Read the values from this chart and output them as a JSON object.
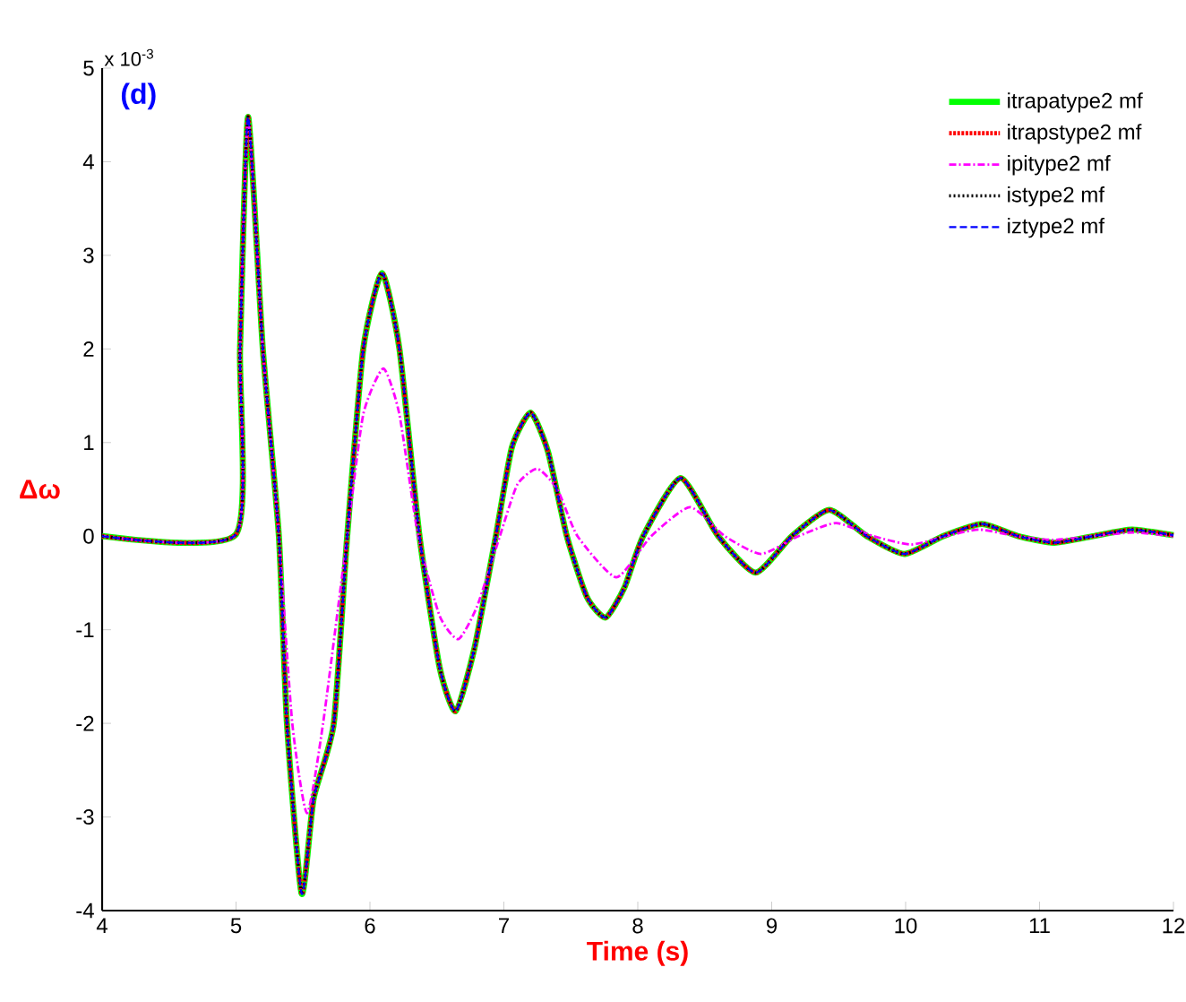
{
  "chart_data": {
    "type": "line",
    "xlabel": "Time (s)",
    "ylabel": "Δω",
    "annotations": [
      "x 10$^{-3}$",
      "(d)"
    ],
    "xlim": [
      4,
      12
    ],
    "ylim": [
      -4,
      5
    ],
    "xticks": [
      4,
      5,
      6,
      7,
      8,
      9,
      10,
      11,
      12
    ],
    "yticks": [
      -4,
      -3,
      -2,
      -1,
      0,
      1,
      2,
      3,
      4,
      5
    ],
    "grid": false,
    "legend": "top right",
    "marker": "none",
    "series": [
      {
        "name": "itrapatype2 mf",
        "color": "#00ff00",
        "line_style": "solid",
        "x": [
          4,
          5.0,
          5.03,
          5.09,
          5.2,
          5.32,
          5.38,
          5.49,
          5.58,
          5.73,
          5.83,
          5.95,
          6.09,
          6.22,
          6.37,
          6.52,
          6.64,
          6.78,
          6.94,
          7.06,
          7.2,
          7.33,
          7.47,
          7.62,
          7.76,
          7.9,
          8.04,
          8.32,
          8.6,
          8.88,
          9.15,
          9.43,
          9.71,
          9.99,
          10.28,
          10.57,
          10.84,
          11.11,
          11.4,
          11.69,
          12
        ],
        "values": [
          0,
          0.02,
          2.0,
          4.48,
          2.0,
          0,
          -2.0,
          -3.82,
          -2.8,
          -2.0,
          0,
          2.0,
          2.81,
          2.0,
          0,
          -1.4,
          -1.87,
          -1.2,
          0,
          0.95,
          1.32,
          0.9,
          0,
          -0.65,
          -0.87,
          -0.55,
          0,
          0.62,
          0,
          -0.39,
          0,
          0.28,
          0,
          -0.19,
          0,
          0.13,
          0,
          -0.07,
          0,
          0.07,
          0.01
        ]
      },
      {
        "name": "itrapstype2 mf",
        "color": "#ff0000",
        "line_style": "dotted",
        "x": [
          4,
          5.0,
          5.03,
          5.09,
          5.2,
          5.32,
          5.38,
          5.49,
          5.58,
          5.73,
          5.83,
          5.95,
          6.09,
          6.22,
          6.37,
          6.52,
          6.64,
          6.78,
          6.94,
          7.06,
          7.2,
          7.33,
          7.47,
          7.62,
          7.76,
          7.9,
          8.04,
          8.32,
          8.6,
          8.88,
          9.15,
          9.43,
          9.71,
          9.99,
          10.28,
          10.57,
          10.84,
          11.11,
          11.4,
          11.69,
          12
        ],
        "values": [
          0,
          0.02,
          2.0,
          4.48,
          2.0,
          0,
          -2.0,
          -3.82,
          -2.8,
          -2.0,
          0,
          2.0,
          2.81,
          2.0,
          0,
          -1.4,
          -1.87,
          -1.2,
          0,
          0.95,
          1.32,
          0.9,
          0,
          -0.65,
          -0.87,
          -0.55,
          0,
          0.62,
          0,
          -0.39,
          0,
          0.28,
          0,
          -0.19,
          0,
          0.13,
          0,
          -0.07,
          0,
          0.07,
          0.01
        ]
      },
      {
        "name": "ipitype2 mf",
        "color": "#ff00ff",
        "line_style": "dashdot",
        "x": [
          4,
          5.0,
          5.03,
          5.09,
          5.2,
          5.32,
          5.42,
          5.53,
          5.65,
          5.83,
          5.95,
          6.1,
          6.22,
          6.36,
          6.52,
          6.66,
          6.8,
          6.97,
          7.1,
          7.25,
          7.4,
          7.55,
          7.84,
          8.1,
          8.39,
          8.65,
          8.92,
          9.2,
          9.48,
          9.76,
          10.04,
          10.3,
          10.55,
          10.83,
          11.1,
          11.4,
          11.7,
          12
        ],
        "values": [
          0,
          0.02,
          2.0,
          4.45,
          2.0,
          0,
          -2.0,
          -2.96,
          -2.0,
          0,
          1.3,
          1.79,
          1.3,
          0,
          -0.85,
          -1.1,
          -0.75,
          0,
          0.55,
          0.72,
          0.5,
          0,
          -0.44,
          0,
          0.31,
          0,
          -0.19,
          0,
          0.14,
          0,
          -0.09,
          0,
          0.07,
          0,
          -0.04,
          0,
          0.04,
          0
        ]
      },
      {
        "name": "istype2 mf",
        "color": "#000000",
        "line_style": "dotted",
        "x": [
          4,
          5.0,
          5.03,
          5.09,
          5.2,
          5.32,
          5.38,
          5.49,
          5.58,
          5.73,
          5.83,
          5.95,
          6.09,
          6.22,
          6.37,
          6.52,
          6.64,
          6.78,
          6.94,
          7.06,
          7.2,
          7.33,
          7.47,
          7.62,
          7.76,
          7.9,
          8.04,
          8.32,
          8.6,
          8.88,
          9.15,
          9.43,
          9.71,
          9.99,
          10.28,
          10.57,
          10.84,
          11.11,
          11.4,
          11.69,
          12
        ],
        "values": [
          0,
          0.02,
          2.0,
          4.48,
          2.0,
          0,
          -2.0,
          -3.82,
          -2.8,
          -2.0,
          0,
          2.0,
          2.81,
          2.0,
          0,
          -1.4,
          -1.87,
          -1.2,
          0,
          0.95,
          1.32,
          0.9,
          0,
          -0.65,
          -0.87,
          -0.55,
          0,
          0.62,
          0,
          -0.39,
          0,
          0.28,
          0,
          -0.19,
          0,
          0.13,
          0,
          -0.07,
          0,
          0.07,
          0.01
        ]
      },
      {
        "name": "iztype2 mf",
        "color": "#0000ff",
        "line_style": "dashed",
        "x": [
          4,
          5.0,
          5.03,
          5.09,
          5.2,
          5.32,
          5.38,
          5.49,
          5.58,
          5.73,
          5.83,
          5.95,
          6.09,
          6.22,
          6.37,
          6.52,
          6.64,
          6.78,
          6.94,
          7.06,
          7.2,
          7.33,
          7.47,
          7.62,
          7.76,
          7.9,
          8.04,
          8.32,
          8.6,
          8.88,
          9.15,
          9.43,
          9.71,
          9.99,
          10.28,
          10.57,
          10.84,
          11.11,
          11.4,
          11.69,
          12
        ],
        "values": [
          0,
          0.02,
          2.0,
          4.48,
          2.0,
          0,
          -2.0,
          -3.82,
          -2.8,
          -2.0,
          0,
          2.0,
          2.81,
          2.0,
          0,
          -1.4,
          -1.87,
          -1.2,
          0,
          0.95,
          1.32,
          0.9,
          0,
          -0.65,
          -0.87,
          -0.55,
          0,
          0.62,
          0,
          -0.39,
          0,
          0.28,
          0,
          -0.19,
          0,
          0.13,
          0,
          -0.07,
          0,
          0.07,
          0.01
        ]
      }
    ]
  }
}
